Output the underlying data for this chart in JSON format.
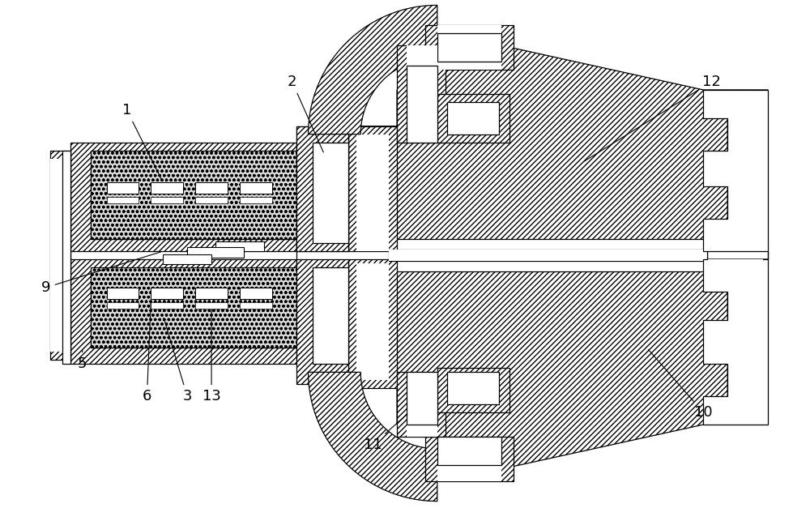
{
  "bg_color": "#ffffff",
  "line_color": "#000000",
  "fig_width": 10.0,
  "fig_height": 6.27,
  "dpi": 100,
  "lw": 0.9
}
